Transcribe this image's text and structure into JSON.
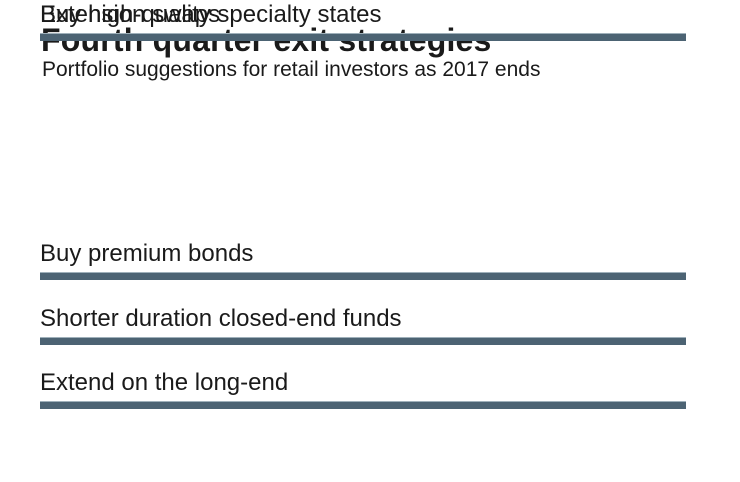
{
  "header": {
    "title": "Fourth quarter exit strategies",
    "subtitle": "Portfolio suggestions for retail investors as 2017 ends"
  },
  "list": {
    "items": [
      {
        "label": "Buy premium bonds"
      },
      {
        "label": "Shorter duration closed-end funds"
      },
      {
        "label": "Extend on the long-end"
      },
      {
        "label": "Buy high-quality specialty states"
      },
      {
        "label": "Extension swaps"
      }
    ]
  },
  "colors": {
    "rule": "#4c6373",
    "text": "#1a1a1a"
  }
}
